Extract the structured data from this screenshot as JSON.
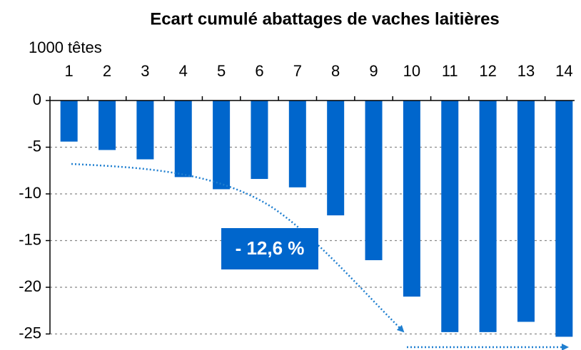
{
  "chart_data": {
    "type": "bar",
    "title": "Ecart cumulé abattages de vaches laitières",
    "y_label": "1000 têtes",
    "annotation": "- 12,6 %",
    "categories": [
      "1",
      "2",
      "3",
      "4",
      "5",
      "6",
      "7",
      "8",
      "9",
      "10",
      "11",
      "12",
      "13",
      "14"
    ],
    "values": [
      -4.4,
      -5.3,
      -6.3,
      -8.2,
      -9.5,
      -8.4,
      -9.3,
      -12.3,
      -17.1,
      -21.0,
      -24.8,
      -24.8,
      -23.7,
      -25.3
    ],
    "color": "#0066cc",
    "ylim": [
      -26,
      0
    ],
    "yticks": [
      0,
      -5,
      -10,
      -15,
      -20,
      -25
    ],
    "grid": true
  }
}
